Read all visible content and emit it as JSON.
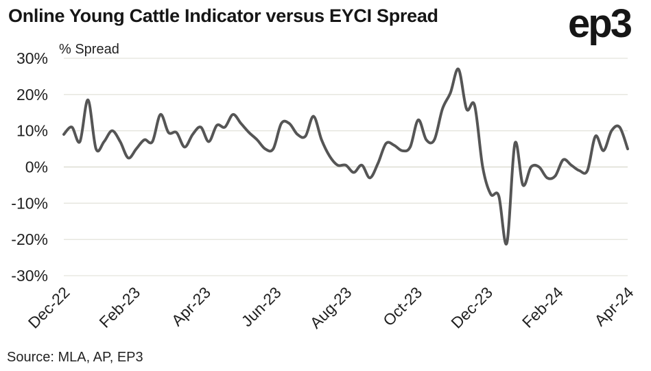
{
  "header": {
    "title": "Online Young Cattle Indicator versus EYCI Spread",
    "logo": "ep3"
  },
  "footer": {
    "source": "Source: MLA, AP, EP3"
  },
  "colors": {
    "line": "#555555",
    "grid": "#e4e4dc",
    "text": "#1f1f1f"
  },
  "chart_data": {
    "type": "line",
    "title": "Online Young Cattle Indicator versus EYCI Spread",
    "ylabel": "% Spread",
    "xlabel": "",
    "ylim": [
      -30,
      30
    ],
    "y_ticks": [
      30,
      20,
      10,
      0,
      -10,
      -20,
      -30
    ],
    "y_tick_labels": [
      "30%",
      "20%",
      "10%",
      "0%",
      "-10%",
      "-20%",
      "-30%"
    ],
    "x_tick_labels": [
      "Dec-22",
      "Feb-23",
      "Apr-23",
      "Jun-23",
      "Aug-23",
      "Oct-23",
      "Dec-23",
      "Feb-24",
      "Apr-24"
    ],
    "grid": true,
    "legend": "none",
    "series": [
      {
        "values": [
          9,
          11,
          7,
          18.5,
          5,
          7,
          10,
          7,
          2.5,
          5,
          7.5,
          7,
          14.5,
          9.5,
          9.5,
          5.5,
          9,
          11,
          7,
          11.5,
          11,
          14.5,
          12,
          9.5,
          7.5,
          5,
          5,
          12,
          12,
          9,
          8.5,
          14,
          7.5,
          3,
          0.5,
          0.5,
          -1.5,
          0.5,
          -3,
          1,
          6.5,
          6,
          4.5,
          5.5,
          13,
          7.5,
          7.5,
          16,
          20.5,
          27,
          16,
          17,
          0,
          -7.5,
          -8,
          -21,
          6.5,
          -5,
          0,
          0,
          -3,
          -2.5,
          2,
          0.5,
          -1,
          -1,
          8.5,
          4.5,
          10,
          11,
          5
        ]
      }
    ]
  }
}
